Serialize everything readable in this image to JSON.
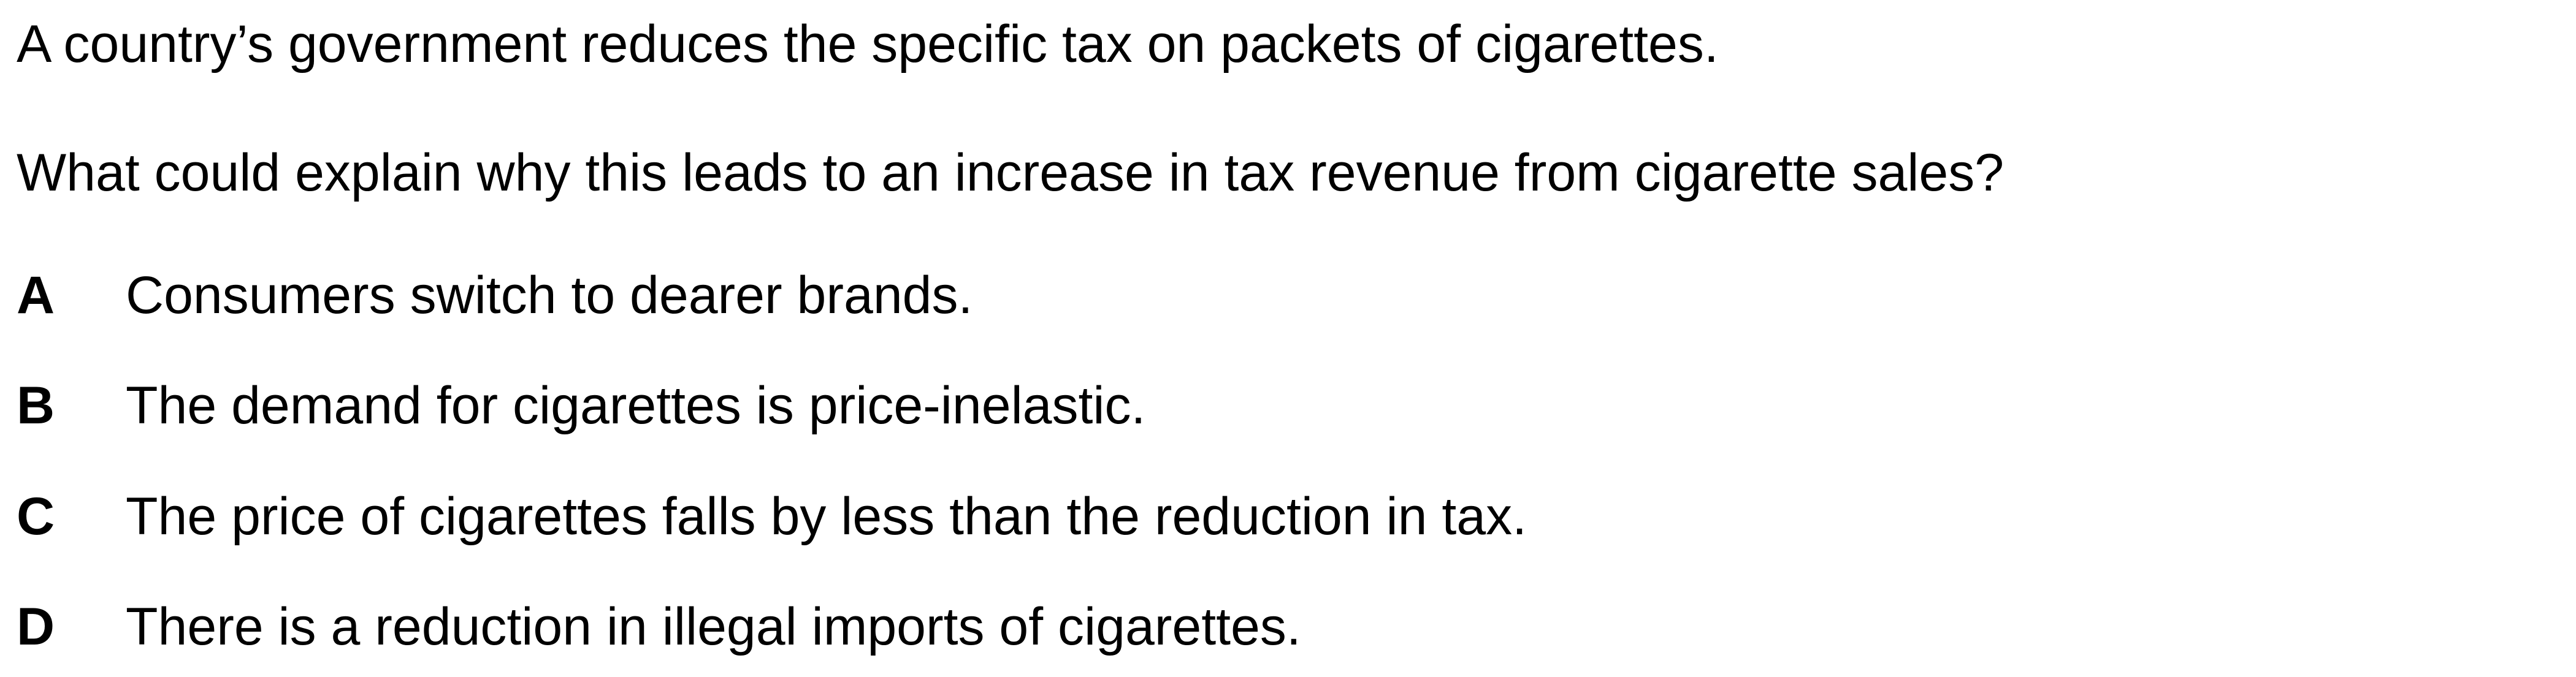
{
  "question": {
    "stem": "A country’s government reduces the specific tax on packets of cigarettes.",
    "prompt": "What could explain why this leads to an increase in tax revenue from cigarette sales?"
  },
  "options": [
    {
      "letter": "A",
      "text": "Consumers switch to dearer brands."
    },
    {
      "letter": "B",
      "text": "The demand for cigarettes is price-inelastic."
    },
    {
      "letter": "C",
      "text": "The price of cigarettes falls by less than the reduction in tax."
    },
    {
      "letter": "D",
      "text": "There is a reduction in illegal imports of cigarettes."
    }
  ]
}
